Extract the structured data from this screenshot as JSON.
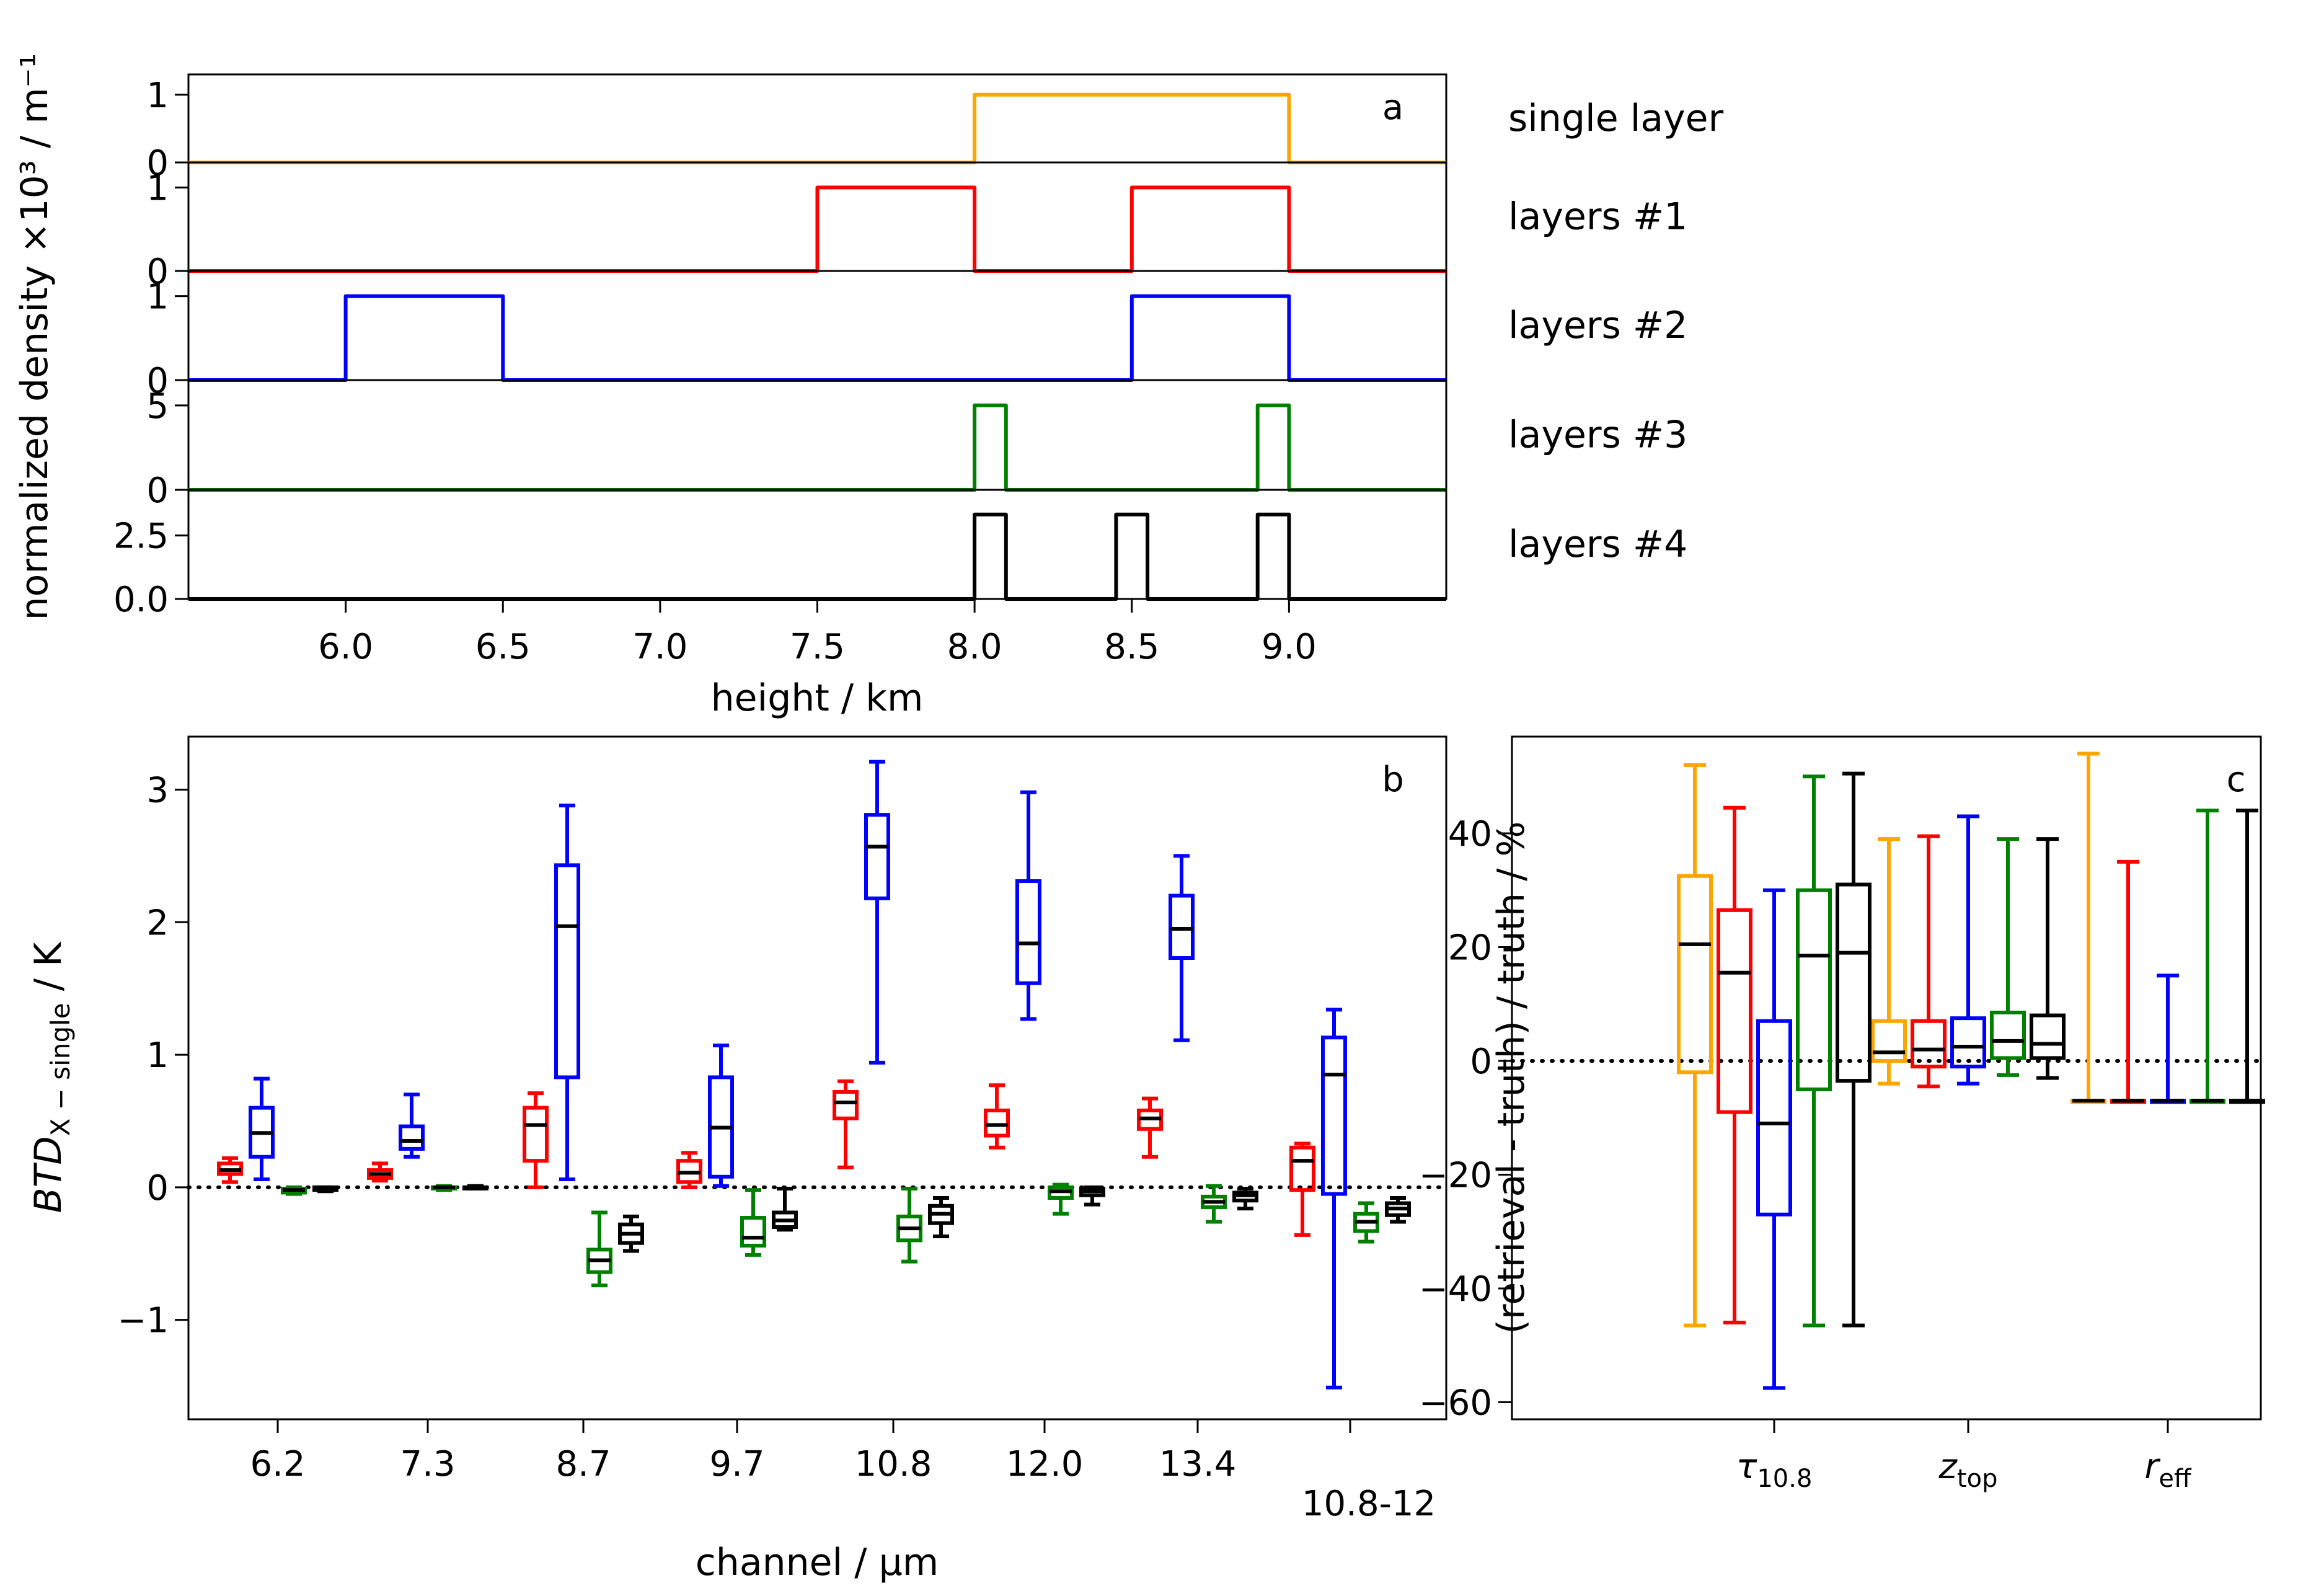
{
  "colors": {
    "single_layer": "#FFA500",
    "layers_1": "#FF0000",
    "layers_2": "#0000FF",
    "layers_3": "#008000",
    "layers_4": "#000000"
  },
  "chart_data": [
    {
      "panel": "a",
      "type": "line",
      "xlabel": "height / km",
      "ylabel": "normalized density ×10³ / m⁻¹",
      "xlim": [
        5.5,
        9.5
      ],
      "xticks": [
        "6.0",
        "6.5",
        "7.0",
        "7.5",
        "8.0",
        "8.5",
        "9.0"
      ],
      "subplots": [
        {
          "label": "single layer",
          "color": "#FFA500",
          "ylim": [
            0,
            1.3
          ],
          "yticks": [
            "0",
            "1"
          ],
          "ytick_values": [
            0,
            1
          ],
          "x": [
            5.5,
            8.0,
            8.0,
            9.0,
            9.0,
            9.5
          ],
          "y": [
            0,
            0,
            1,
            1,
            0,
            0
          ]
        },
        {
          "label": "layers #1",
          "color": "#FF0000",
          "ylim": [
            0,
            1.3
          ],
          "yticks": [
            "0",
            "1"
          ],
          "ytick_values": [
            0,
            1
          ],
          "x": [
            5.5,
            7.5,
            7.5,
            8.0,
            8.0,
            8.5,
            8.5,
            9.0,
            9.0,
            9.5
          ],
          "y": [
            0,
            0,
            1,
            1,
            0,
            0,
            1,
            1,
            0,
            0
          ]
        },
        {
          "label": "layers #2",
          "color": "#0000FF",
          "ylim": [
            0,
            1.3
          ],
          "yticks": [
            "0",
            "1"
          ],
          "ytick_values": [
            0,
            1
          ],
          "x": [
            5.5,
            6.0,
            6.0,
            6.5,
            6.5,
            8.5,
            8.5,
            9.0,
            9.0,
            9.5
          ],
          "y": [
            0,
            0,
            1,
            1,
            0,
            0,
            1,
            1,
            0,
            0
          ]
        },
        {
          "label": "layers #3",
          "color": "#008000",
          "ylim": [
            0,
            6.5
          ],
          "yticks": [
            "0",
            "5"
          ],
          "ytick_values": [
            0,
            5
          ],
          "x": [
            5.5,
            8.0,
            8.0,
            8.1,
            8.1,
            8.9,
            8.9,
            9.0,
            9.0,
            9.5
          ],
          "y": [
            0,
            0,
            5,
            5,
            0,
            0,
            5,
            5,
            0,
            0
          ]
        },
        {
          "label": "layers #4",
          "color": "#000000",
          "ylim": [
            0,
            4.3
          ],
          "yticks": [
            "0.0",
            "2.5"
          ],
          "ytick_values": [
            0,
            2.5
          ],
          "x": [
            5.5,
            8.0,
            8.0,
            8.1,
            8.1,
            8.45,
            8.45,
            8.55,
            8.55,
            8.9,
            8.9,
            9.0,
            9.0,
            9.5
          ],
          "y": [
            0,
            0,
            3.33,
            3.33,
            0,
            0,
            3.33,
            3.33,
            0,
            0,
            3.33,
            3.33,
            0,
            0
          ]
        }
      ]
    },
    {
      "panel": "b",
      "type": "box",
      "xlabel": "channel / μm",
      "ylabel_main": "BTD",
      "ylabel_sub": "X − single",
      "ylabel_tail": " / K",
      "ylim": [
        -1.75,
        3.4
      ],
      "yticks": [
        "−1",
        "0",
        "1",
        "2",
        "3"
      ],
      "ytick_values": [
        -1,
        0,
        1,
        2,
        3
      ],
      "categories": [
        "6.2",
        "7.3",
        "8.7",
        "9.7",
        "10.8",
        "12.0",
        "13.4",
        "10.8-12"
      ],
      "series": [
        {
          "name": "layers #1",
          "color": "#FF0000",
          "boxes": [
            {
              "whislo": 0.04,
              "q1": 0.1,
              "med": 0.13,
              "q3": 0.18,
              "whishi": 0.22
            },
            {
              "whislo": 0.05,
              "q1": 0.07,
              "med": 0.1,
              "q3": 0.13,
              "whishi": 0.18
            },
            {
              "whislo": 0.0,
              "q1": 0.2,
              "med": 0.47,
              "q3": 0.6,
              "whishi": 0.71
            },
            {
              "whislo": 0.0,
              "q1": 0.04,
              "med": 0.11,
              "q3": 0.2,
              "whishi": 0.26
            },
            {
              "whislo": 0.15,
              "q1": 0.52,
              "med": 0.64,
              "q3": 0.72,
              "whishi": 0.8
            },
            {
              "whislo": 0.3,
              "q1": 0.39,
              "med": 0.47,
              "q3": 0.58,
              "whishi": 0.77
            },
            {
              "whislo": 0.23,
              "q1": 0.44,
              "med": 0.52,
              "q3": 0.58,
              "whishi": 0.67
            },
            {
              "whislo": -0.36,
              "q1": -0.02,
              "med": 0.2,
              "q3": 0.3,
              "whishi": 0.33
            }
          ]
        },
        {
          "name": "layers #2",
          "color": "#0000FF",
          "boxes": [
            {
              "whislo": 0.06,
              "q1": 0.23,
              "med": 0.41,
              "q3": 0.6,
              "whishi": 0.82
            },
            {
              "whislo": 0.23,
              "q1": 0.29,
              "med": 0.35,
              "q3": 0.46,
              "whishi": 0.7
            },
            {
              "whislo": 0.06,
              "q1": 0.83,
              "med": 1.97,
              "q3": 2.43,
              "whishi": 2.88
            },
            {
              "whislo": 0.01,
              "q1": 0.08,
              "med": 0.45,
              "q3": 0.83,
              "whishi": 1.07
            },
            {
              "whislo": 0.94,
              "q1": 2.18,
              "med": 2.57,
              "q3": 2.81,
              "whishi": 3.21
            },
            {
              "whislo": 1.27,
              "q1": 1.54,
              "med": 1.84,
              "q3": 2.31,
              "whishi": 2.98
            },
            {
              "whislo": 1.11,
              "q1": 1.73,
              "med": 1.95,
              "q3": 2.2,
              "whishi": 2.5
            },
            {
              "whislo": -1.51,
              "q1": -0.05,
              "med": 0.85,
              "q3": 1.13,
              "whishi": 1.34
            }
          ]
        },
        {
          "name": "layers #3",
          "color": "#008000",
          "boxes": [
            {
              "whislo": -0.05,
              "q1": -0.04,
              "med": -0.02,
              "q3": -0.01,
              "whishi": 0.0
            },
            {
              "whislo": -0.02,
              "q1": -0.01,
              "med": 0.0,
              "q3": 0.0,
              "whishi": 0.01
            },
            {
              "whislo": -0.74,
              "q1": -0.64,
              "med": -0.55,
              "q3": -0.47,
              "whishi": -0.19
            },
            {
              "whislo": -0.51,
              "q1": -0.44,
              "med": -0.38,
              "q3": -0.23,
              "whishi": -0.02
            },
            {
              "whislo": -0.56,
              "q1": -0.4,
              "med": -0.31,
              "q3": -0.22,
              "whishi": -0.01
            },
            {
              "whislo": -0.2,
              "q1": -0.08,
              "med": -0.03,
              "q3": 0.0,
              "whishi": 0.02
            },
            {
              "whislo": -0.26,
              "q1": -0.15,
              "med": -0.11,
              "q3": -0.07,
              "whishi": 0.01
            },
            {
              "whislo": -0.41,
              "q1": -0.33,
              "med": -0.26,
              "q3": -0.2,
              "whishi": -0.12
            }
          ]
        },
        {
          "name": "layers #4",
          "color": "#000000",
          "boxes": [
            {
              "whislo": -0.03,
              "q1": -0.02,
              "med": -0.01,
              "q3": 0.0,
              "whishi": 0.0
            },
            {
              "whislo": -0.01,
              "q1": 0.0,
              "med": 0.0,
              "q3": 0.0,
              "whishi": 0.01
            },
            {
              "whislo": -0.48,
              "q1": -0.42,
              "med": -0.35,
              "q3": -0.28,
              "whishi": -0.22
            },
            {
              "whislo": -0.32,
              "q1": -0.3,
              "med": -0.25,
              "q3": -0.19,
              "whishi": -0.01
            },
            {
              "whislo": -0.37,
              "q1": -0.27,
              "med": -0.2,
              "q3": -0.14,
              "whishi": -0.08
            },
            {
              "whislo": -0.13,
              "q1": -0.06,
              "med": -0.03,
              "q3": -0.01,
              "whishi": 0.0
            },
            {
              "whislo": -0.16,
              "q1": -0.1,
              "med": -0.06,
              "q3": -0.04,
              "whishi": -0.01
            },
            {
              "whislo": -0.26,
              "q1": -0.21,
              "med": -0.16,
              "q3": -0.12,
              "whishi": -0.08
            }
          ]
        }
      ]
    },
    {
      "panel": "c",
      "type": "box",
      "ylabel": "(retrieval - truth) / truth / %",
      "ylim": [
        -63,
        57
      ],
      "yticks": [
        "−60",
        "−40",
        "−20",
        "0",
        "20",
        "40"
      ],
      "ytick_values": [
        -60,
        -40,
        -20,
        0,
        20,
        40
      ],
      "categories": [
        {
          "main": "τ",
          "sub": "10.8"
        },
        {
          "main": "z",
          "sub": "top"
        },
        {
          "main": "r",
          "sub": "eff"
        }
      ],
      "series": [
        {
          "name": "single layer",
          "color": "#FFA500",
          "boxes": [
            {
              "whislo": -46.5,
              "q1": -2,
              "med": 20.5,
              "q3": 32.5,
              "whishi": 52
            },
            {
              "whislo": -4,
              "q1": 0,
              "med": 1.5,
              "q3": 7,
              "whishi": 39
            },
            {
              "whislo": -7,
              "q1": -7,
              "med": -7,
              "q3": -7,
              "whishi": 54
            }
          ]
        },
        {
          "name": "layers #1",
          "color": "#FF0000",
          "boxes": [
            {
              "whislo": -46,
              "q1": -9,
              "med": 15.5,
              "q3": 26.5,
              "whishi": 44.5
            },
            {
              "whislo": -4.5,
              "q1": -1,
              "med": 2,
              "q3": 7,
              "whishi": 39.5
            },
            {
              "whislo": -7,
              "q1": -7,
              "med": -7,
              "q3": -7,
              "whishi": 35
            }
          ]
        },
        {
          "name": "layers #2",
          "color": "#0000FF",
          "boxes": [
            {
              "whislo": -57.5,
              "q1": -27,
              "med": -11,
              "q3": 7,
              "whishi": 30
            },
            {
              "whislo": -4,
              "q1": -1,
              "med": 2.5,
              "q3": 7.5,
              "whishi": 43
            },
            {
              "whislo": -7,
              "q1": -7,
              "med": -7,
              "q3": -7,
              "whishi": 15
            }
          ]
        },
        {
          "name": "layers #3",
          "color": "#008000",
          "boxes": [
            {
              "whislo": -46.5,
              "q1": -5,
              "med": 18.5,
              "q3": 30,
              "whishi": 50
            },
            {
              "whislo": -2.5,
              "q1": 0.5,
              "med": 3.5,
              "q3": 8.5,
              "whishi": 39
            },
            {
              "whislo": -7,
              "q1": -7,
              "med": -7,
              "q3": -7,
              "whishi": 44
            }
          ]
        },
        {
          "name": "layers #4",
          "color": "#000000",
          "boxes": [
            {
              "whislo": -46.5,
              "q1": -3.5,
              "med": 19,
              "q3": 31,
              "whishi": 50.5
            },
            {
              "whislo": -3,
              "q1": 0.5,
              "med": 3,
              "q3": 8,
              "whishi": 39
            },
            {
              "whislo": -7,
              "q1": -7,
              "med": -7,
              "q3": -7,
              "whishi": 44
            }
          ]
        }
      ]
    }
  ]
}
